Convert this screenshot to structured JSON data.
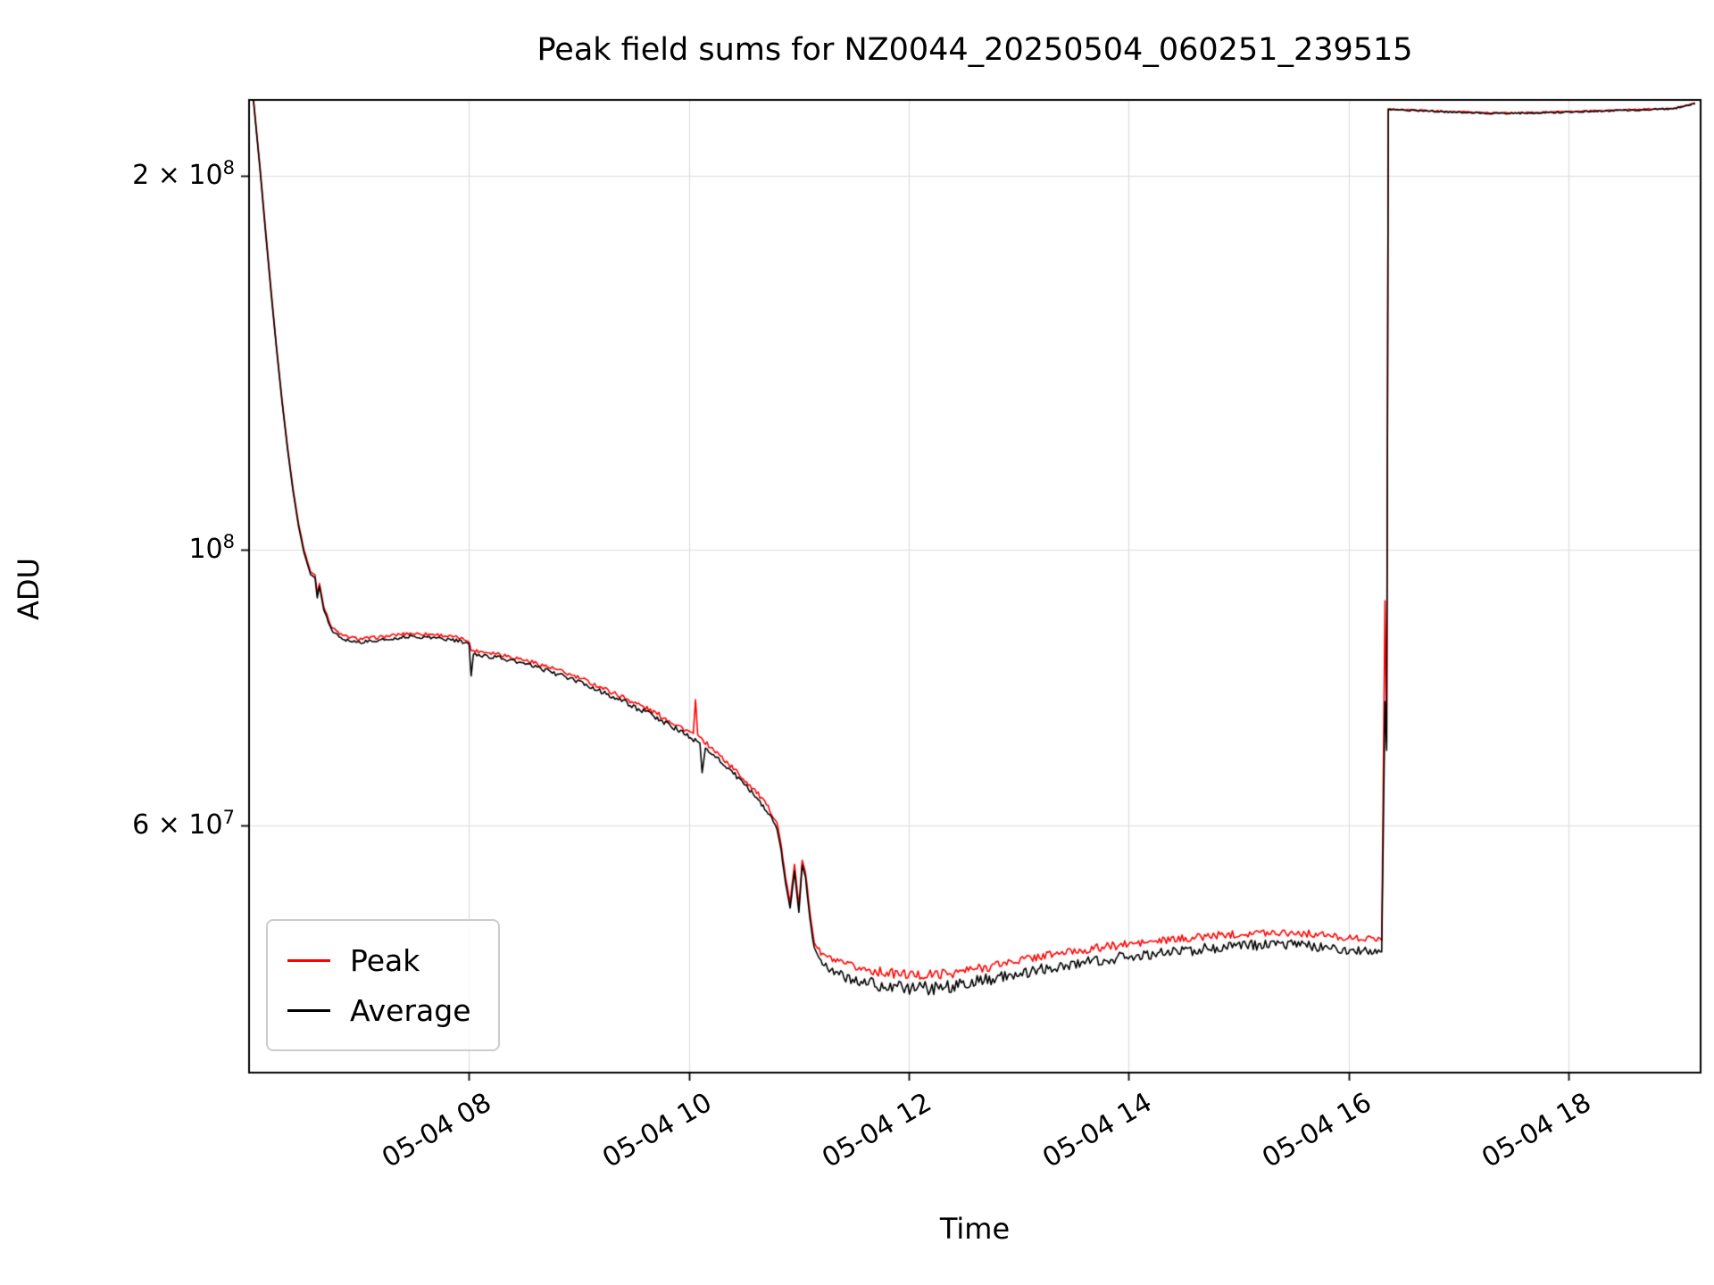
{
  "figure": {
    "background": "#ffffff"
  },
  "chart_data": {
    "type": "line",
    "title": "Peak field sums for NZ0044_20250504_060251_239515",
    "xlabel": "Time",
    "ylabel": "ADU",
    "yscale": "log",
    "grid": true,
    "grid_color": "#dddddd",
    "xlim_hours": [
      6.0,
      19.2
    ],
    "ylim": [
      38000000,
      230000000
    ],
    "x_ticks": [
      {
        "hour": 8,
        "label": "05-04 08"
      },
      {
        "hour": 10,
        "label": "05-04 10"
      },
      {
        "hour": 12,
        "label": "05-04 12"
      },
      {
        "hour": 14,
        "label": "05-04 14"
      },
      {
        "hour": 16,
        "label": "05-04 16"
      },
      {
        "hour": 18,
        "label": "05-04 18"
      }
    ],
    "y_ticks": [
      {
        "value": 200000000,
        "label": "2 × 10^8"
      },
      {
        "value": 100000000,
        "label": "10^8"
      },
      {
        "value": 60000000,
        "label": "6 × 10^7"
      }
    ],
    "legend": {
      "position": "lower left",
      "entries": [
        {
          "label": "Peak",
          "color": "#ff0000"
        },
        {
          "label": "Average",
          "color": "#000000"
        }
      ]
    },
    "series": [
      {
        "name": "Peak",
        "color": "#ff0000",
        "linewidth": 1.6,
        "points": [
          [
            6.02,
            240000000,
            0
          ],
          [
            6.06,
            221000000,
            0
          ],
          [
            6.1,
            203000000,
            0
          ],
          [
            6.15,
            181000000,
            0
          ],
          [
            6.2,
            162000000,
            0
          ],
          [
            6.25,
            145500000,
            0
          ],
          [
            6.3,
            132000000,
            0
          ],
          [
            6.35,
            121000000,
            0
          ],
          [
            6.4,
            112000000,
            0
          ],
          [
            6.45,
            105000000,
            0
          ],
          [
            6.5,
            100000000,
            0.001
          ],
          [
            6.56,
            96000000,
            0.001
          ],
          [
            6.6,
            95500000,
            0
          ],
          [
            6.62,
            92200000,
            0
          ],
          [
            6.64,
            94000000,
            0
          ],
          [
            6.68,
            90000000,
            0.001
          ],
          [
            6.75,
            86700000,
            0.002
          ],
          [
            6.85,
            85300000,
            0.003
          ],
          [
            7.0,
            84800000,
            0.003
          ],
          [
            7.2,
            85100000,
            0.003
          ],
          [
            7.45,
            85700000,
            0.003
          ],
          [
            7.7,
            85500000,
            0.003
          ],
          [
            7.9,
            85000000,
            0.003
          ],
          [
            8.0,
            84500000,
            0.002
          ],
          [
            8.02,
            83000000,
            0
          ],
          [
            8.04,
            83000000,
            0.003
          ],
          [
            8.25,
            82600000,
            0.004
          ],
          [
            8.45,
            81800000,
            0.004
          ],
          [
            8.65,
            80900000,
            0.004
          ],
          [
            8.85,
            79800000,
            0.004
          ],
          [
            9.05,
            78600000,
            0.004
          ],
          [
            9.25,
            77200000,
            0.004
          ],
          [
            9.45,
            75800000,
            0.005
          ],
          [
            9.65,
            74300000,
            0.005
          ],
          [
            9.85,
            72700000,
            0.005
          ],
          [
            10.0,
            71400000,
            0.005
          ],
          [
            10.04,
            71200000,
            0
          ],
          [
            10.06,
            75800000,
            0
          ],
          [
            10.08,
            71000000,
            0
          ],
          [
            10.15,
            70000000,
            0.004
          ],
          [
            10.3,
            68100000,
            0.005
          ],
          [
            10.45,
            66100000,
            0.005
          ],
          [
            10.6,
            64100000,
            0.005
          ],
          [
            10.72,
            62100000,
            0.004
          ],
          [
            10.8,
            60400000,
            0.003
          ],
          [
            10.84,
            57800000,
            0.002
          ],
          [
            10.88,
            54400000,
            0.002
          ],
          [
            10.92,
            52100000,
            0.002
          ],
          [
            10.96,
            55800000,
            0.002
          ],
          [
            11.0,
            51800000,
            0.002
          ],
          [
            11.03,
            56400000,
            0.002
          ],
          [
            11.06,
            55100000,
            0.002
          ],
          [
            11.1,
            51100000,
            0.002
          ],
          [
            11.14,
            48400000,
            0.004
          ],
          [
            11.2,
            47400000,
            0.005
          ],
          [
            11.35,
            46600000,
            0.007
          ],
          [
            11.55,
            46100000,
            0.008
          ],
          [
            11.8,
            45700000,
            0.009
          ],
          [
            12.1,
            45500000,
            0.009
          ],
          [
            12.4,
            45700000,
            0.009
          ],
          [
            12.7,
            46200000,
            0.009
          ],
          [
            13.0,
            46800000,
            0.008
          ],
          [
            13.3,
            47300000,
            0.008
          ],
          [
            13.6,
            47700000,
            0.008
          ],
          [
            13.9,
            48100000,
            0.008
          ],
          [
            14.2,
            48400000,
            0.007
          ],
          [
            14.5,
            48700000,
            0.007
          ],
          [
            14.8,
            49000000,
            0.007
          ],
          [
            15.1,
            49200000,
            0.007
          ],
          [
            15.4,
            49300000,
            0.007
          ],
          [
            15.7,
            49100000,
            0.007
          ],
          [
            15.95,
            48800000,
            0.006
          ],
          [
            16.15,
            48700000,
            0.005
          ],
          [
            16.3,
            48700000,
            0.004
          ],
          [
            16.33,
            91000000,
            0
          ],
          [
            16.345,
            70000000,
            0
          ],
          [
            16.36,
            226200000,
            0.001
          ],
          [
            16.6,
            225700000,
            0.0012
          ],
          [
            17.0,
            225000000,
            0.0012
          ],
          [
            17.4,
            224500000,
            0.0012
          ],
          [
            17.8,
            224800000,
            0.0012
          ],
          [
            18.2,
            225400000,
            0.0012
          ],
          [
            18.6,
            226000000,
            0.0012
          ],
          [
            18.95,
            226400000,
            0.0012
          ],
          [
            19.15,
            228700000,
            0.001
          ]
        ]
      },
      {
        "name": "Average",
        "color": "#000000",
        "linewidth": 1.6,
        "points": [
          [
            6.02,
            240000000,
            0
          ],
          [
            6.06,
            220000000,
            0
          ],
          [
            6.1,
            202000000,
            0
          ],
          [
            6.15,
            180000000,
            0
          ],
          [
            6.2,
            161000000,
            0
          ],
          [
            6.25,
            145000000,
            0
          ],
          [
            6.3,
            131500000,
            0
          ],
          [
            6.35,
            120500000,
            0
          ],
          [
            6.4,
            111500000,
            0
          ],
          [
            6.45,
            104500000,
            0
          ],
          [
            6.5,
            99500000,
            0.001
          ],
          [
            6.56,
            95500000,
            0.001
          ],
          [
            6.6,
            95000000,
            0
          ],
          [
            6.62,
            91500000,
            0
          ],
          [
            6.64,
            93500000,
            0
          ],
          [
            6.68,
            89500000,
            0.001
          ],
          [
            6.75,
            86200000,
            0.002
          ],
          [
            6.85,
            84800000,
            0.003
          ],
          [
            7.0,
            84300000,
            0.003
          ],
          [
            7.2,
            84600000,
            0.003
          ],
          [
            7.45,
            85200000,
            0.003
          ],
          [
            7.7,
            85000000,
            0.003
          ],
          [
            7.9,
            84500000,
            0.003
          ],
          [
            8.0,
            84000000,
            0.002
          ],
          [
            8.02,
            79200000,
            0
          ],
          [
            8.04,
            82400000,
            0.003
          ],
          [
            8.25,
            82000000,
            0.004
          ],
          [
            8.45,
            81200000,
            0.004
          ],
          [
            8.65,
            80300000,
            0.004
          ],
          [
            8.85,
            79200000,
            0.004
          ],
          [
            9.05,
            78000000,
            0.004
          ],
          [
            9.25,
            76600000,
            0.004
          ],
          [
            9.45,
            75200000,
            0.005
          ],
          [
            9.65,
            73700000,
            0.005
          ],
          [
            9.85,
            72100000,
            0.005
          ],
          [
            10.0,
            70800000,
            0.005
          ],
          [
            10.1,
            69800000,
            0.004
          ],
          [
            10.12,
            66200000,
            0
          ],
          [
            10.15,
            69300000,
            0.004
          ],
          [
            10.3,
            67500000,
            0.005
          ],
          [
            10.45,
            65500000,
            0.005
          ],
          [
            10.6,
            63500000,
            0.005
          ],
          [
            10.72,
            61500000,
            0.004
          ],
          [
            10.8,
            59800000,
            0.003
          ],
          [
            10.84,
            57200000,
            0.002
          ],
          [
            10.88,
            53800000,
            0.002
          ],
          [
            10.92,
            51500000,
            0.002
          ],
          [
            10.96,
            55200000,
            0.002
          ],
          [
            11.0,
            51200000,
            0.002
          ],
          [
            11.03,
            55800000,
            0.002
          ],
          [
            11.06,
            54500000,
            0.002
          ],
          [
            11.1,
            50500000,
            0.002
          ],
          [
            11.14,
            47800000,
            0.004
          ],
          [
            11.2,
            46600000,
            0.006
          ],
          [
            11.35,
            45600000,
            0.009
          ],
          [
            11.55,
            45000000,
            0.011
          ],
          [
            11.8,
            44600000,
            0.012
          ],
          [
            12.1,
            44400000,
            0.013
          ],
          [
            12.4,
            44600000,
            0.013
          ],
          [
            12.7,
            45100000,
            0.012
          ],
          [
            13.0,
            45700000,
            0.011
          ],
          [
            13.3,
            46200000,
            0.011
          ],
          [
            13.6,
            46600000,
            0.01
          ],
          [
            13.9,
            47000000,
            0.01
          ],
          [
            14.2,
            47300000,
            0.01
          ],
          [
            14.5,
            47600000,
            0.01
          ],
          [
            14.8,
            47900000,
            0.01
          ],
          [
            15.1,
            48100000,
            0.01
          ],
          [
            15.4,
            48200000,
            0.009
          ],
          [
            15.7,
            48000000,
            0.009
          ],
          [
            15.95,
            47700000,
            0.008
          ],
          [
            16.15,
            47600000,
            0.007
          ],
          [
            16.3,
            47600000,
            0.005
          ],
          [
            16.33,
            75500000,
            0
          ],
          [
            16.345,
            69000000,
            0
          ],
          [
            16.36,
            226000000,
            0.001
          ],
          [
            16.6,
            225500000,
            0.0015
          ],
          [
            17.0,
            224800000,
            0.0015
          ],
          [
            17.4,
            224300000,
            0.0015
          ],
          [
            17.8,
            224600000,
            0.0015
          ],
          [
            18.2,
            225200000,
            0.0015
          ],
          [
            18.6,
            225800000,
            0.0015
          ],
          [
            18.95,
            226200000,
            0.0015
          ],
          [
            19.15,
            228500000,
            0.001
          ]
        ]
      }
    ]
  }
}
